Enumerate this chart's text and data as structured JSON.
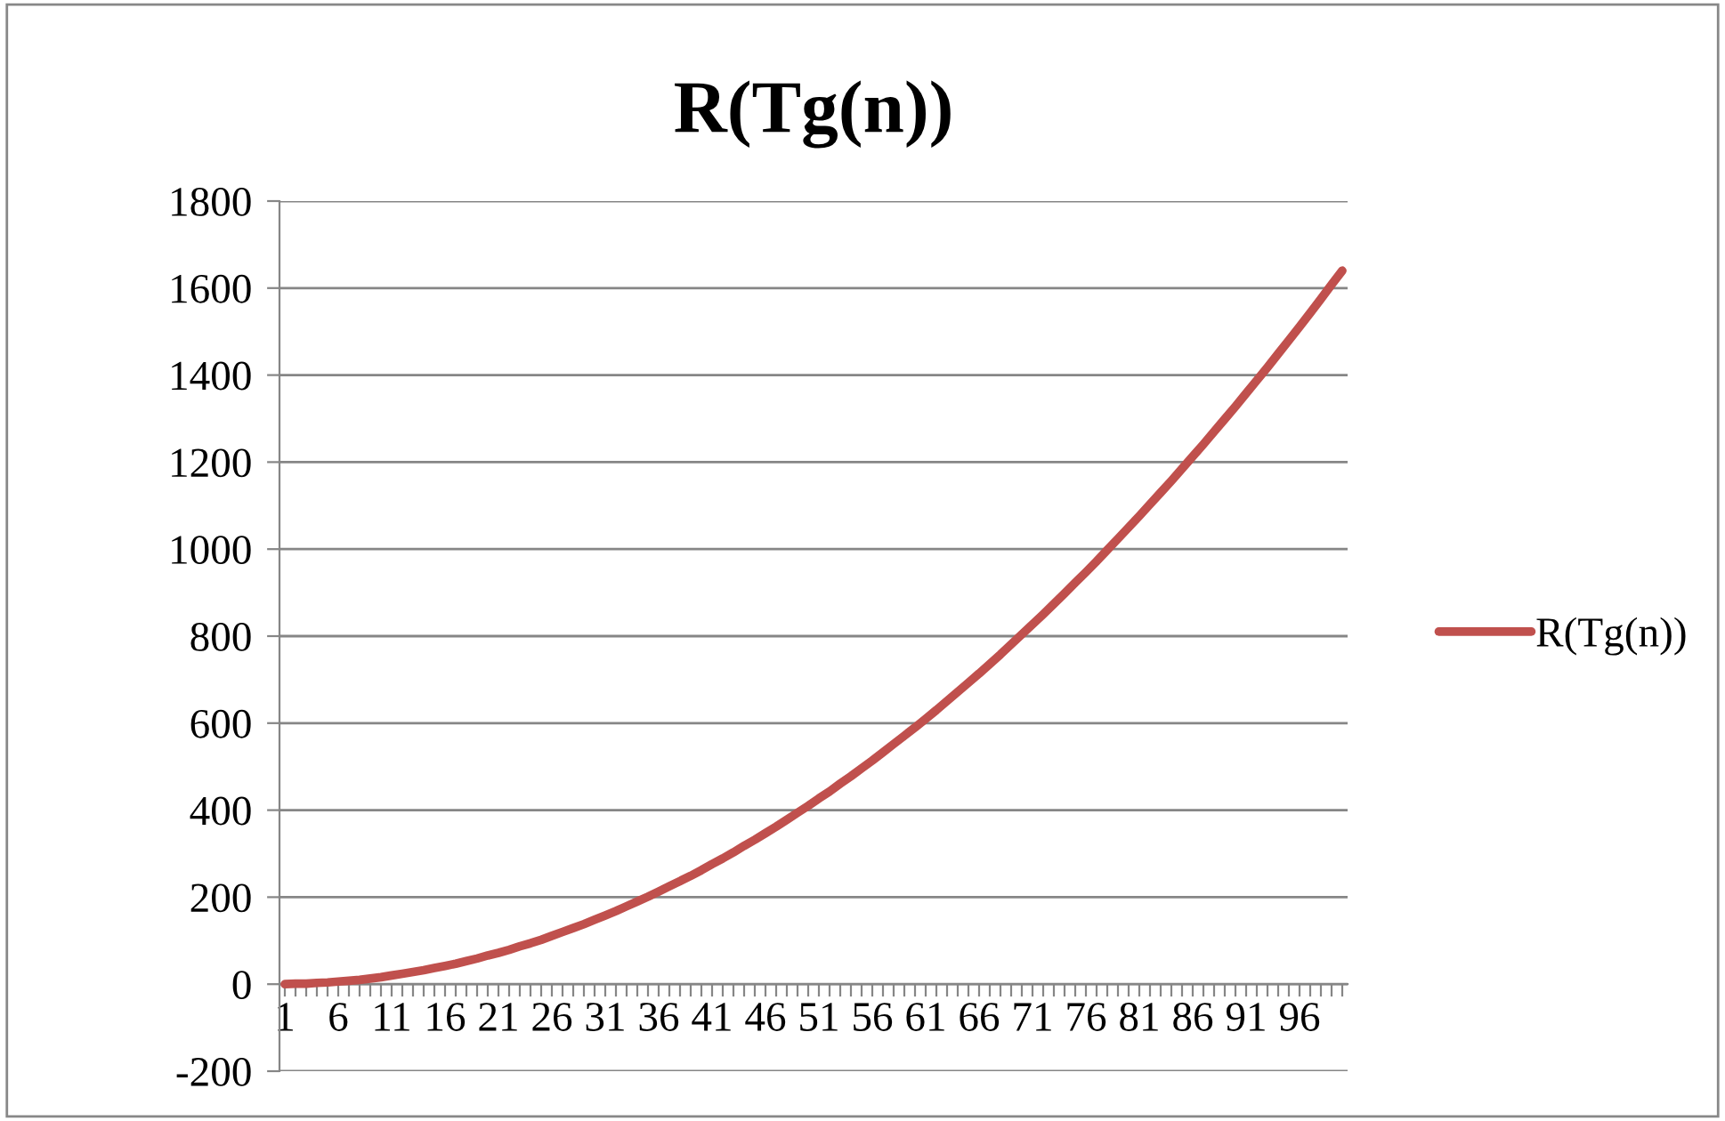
{
  "chart_data": {
    "type": "line",
    "title": "R(Tg(n))",
    "categories": [
      "1",
      null,
      null,
      null,
      null,
      "6",
      null,
      null,
      null,
      null,
      "11",
      null,
      null,
      null,
      null,
      "16",
      null,
      null,
      null,
      null,
      "21",
      null,
      null,
      null,
      null,
      "26",
      null,
      null,
      null,
      null,
      "31",
      null,
      null,
      null,
      null,
      "36",
      null,
      null,
      null,
      null,
      "41",
      null,
      null,
      null,
      null,
      "46",
      null,
      null,
      null,
      null,
      "51",
      null,
      null,
      null,
      null,
      "56",
      null,
      null,
      null,
      null,
      "61",
      null,
      null,
      null,
      null,
      "66",
      null,
      null,
      null,
      null,
      "71",
      null,
      null,
      null,
      null,
      "76",
      null,
      null,
      null,
      null,
      "81",
      null,
      null,
      null,
      null,
      "86",
      null,
      null,
      null,
      null,
      "91",
      null,
      null,
      null,
      null,
      "96",
      null,
      null,
      null,
      null
    ],
    "series": [
      {
        "name": "R(Tg(n))",
        "color": "#c0504d",
        "values": [
          0,
          1,
          1,
          3,
          4,
          6,
          8,
          10,
          13,
          16,
          20,
          24,
          28,
          32,
          37,
          42,
          47,
          53,
          59,
          66,
          72,
          79,
          87,
          94,
          102,
          111,
          120,
          129,
          138,
          148,
          158,
          168,
          179,
          190,
          201,
          213,
          225,
          237,
          249,
          262,
          276,
          289,
          303,
          318,
          332,
          347,
          362,
          378,
          394,
          410,
          427,
          443,
          461,
          478,
          496,
          514,
          533,
          552,
          571,
          590,
          610,
          630,
          651,
          672,
          693,
          714,
          736,
          758,
          781,
          804,
          827,
          850,
          874,
          898,
          923,
          947,
          972,
          998,
          1024,
          1050,
          1076,
          1103,
          1130,
          1157,
          1185,
          1213,
          1241,
          1270,
          1299,
          1328,
          1358,
          1388,
          1418,
          1449,
          1480,
          1511,
          1543,
          1575,
          1608,
          1640
        ]
      }
    ],
    "ylim": [
      -200,
      1800
    ],
    "yticks": [
      -200,
      0,
      200,
      400,
      600,
      800,
      1000,
      1200,
      1400,
      1600,
      1800
    ],
    "grid": "y",
    "legend": "right",
    "marker": "none",
    "line_style": "solid"
  }
}
